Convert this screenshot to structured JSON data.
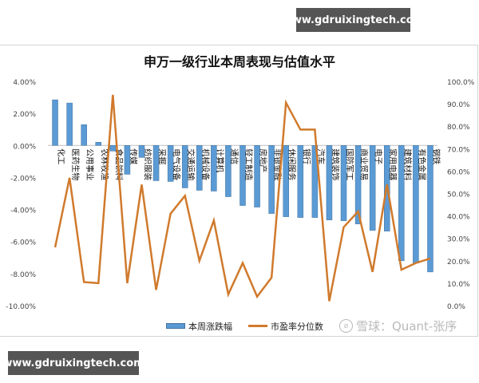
{
  "watermarks": {
    "top": "www.gdruixingtech.com",
    "bottom": "www.gdruixingtech.com",
    "xueqiu": "雪球：Quant-张序"
  },
  "colors": {
    "bar": "#5b9bd5",
    "bar_border": "#41719c",
    "line": "#d07a2c",
    "axis": "#bfbfbf"
  },
  "chart_data": {
    "type": "bar+line",
    "title": "申万一级行业本周表现与估值水平",
    "categories": [
      "化工",
      "医药生物",
      "公用事业",
      "农林牧渔",
      "食品饮料",
      "传媒",
      "纺织服装",
      "采掘",
      "电气设备",
      "交通运输",
      "机械设备",
      "计算机",
      "通信",
      "轻工制造",
      "房地产",
      "非银金融",
      "休闲服务",
      "银行",
      "汽车",
      "建筑装饰",
      "国防军工",
      "商业贸易",
      "电子",
      "家用电器",
      "建筑材料",
      "有色金属",
      "钢铁"
    ],
    "series": [
      {
        "name": "本周涨跌幅",
        "type": "bar",
        "axis": "left",
        "unit": "%",
        "values": [
          2.85,
          2.65,
          1.3,
          0.2,
          -0.35,
          -1.8,
          -0.75,
          -2.2,
          -2.25,
          -2.65,
          -2.8,
          -2.85,
          -3.2,
          -3.75,
          -3.85,
          -4.25,
          -4.45,
          -4.5,
          -4.5,
          -4.65,
          -4.7,
          -4.9,
          -5.3,
          -5.35,
          -7.2,
          -7.35,
          -7.9
        ]
      },
      {
        "name": "市盈率分位数",
        "type": "line",
        "axis": "right",
        "unit": "%",
        "values": [
          26,
          57,
          10.5,
          10,
          94,
          10,
          54,
          7,
          41,
          49,
          20,
          38,
          5,
          19,
          4,
          12.5,
          90.5,
          78.5,
          78.5,
          2,
          35,
          42,
          15,
          54,
          16,
          19,
          21
        ]
      }
    ],
    "left_axis": {
      "ylim": [
        -10,
        4
      ],
      "ticks": [
        "4.00%",
        "2.00%",
        "0.00%",
        "-2.00%",
        "-4.00%",
        "-6.00%",
        "-8.00%",
        "-10.00%"
      ]
    },
    "right_axis": {
      "ylim": [
        0,
        100
      ],
      "ticks": [
        "100.0%",
        "90.0%",
        "80.0%",
        "70.0%",
        "60.0%",
        "50.0%",
        "40.0%",
        "30.0%",
        "20.0%",
        "10.0%",
        "0.0%"
      ]
    },
    "legend": [
      "本周涨跌幅",
      "市盈率分位数"
    ],
    "legend_position": "bottom",
    "grid": false
  }
}
